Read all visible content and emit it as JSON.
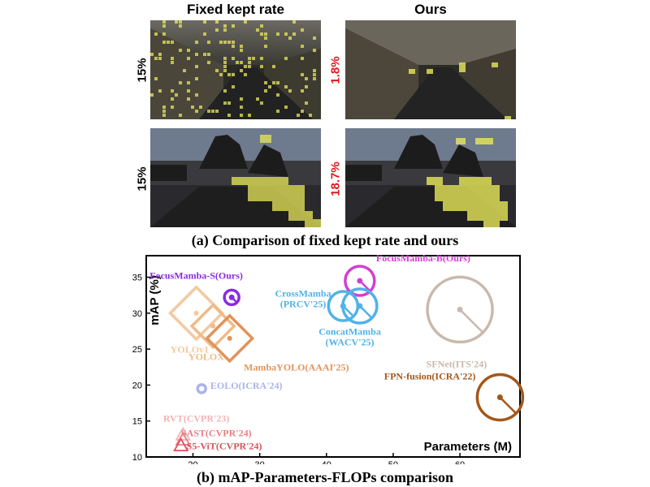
{
  "figure_a": {
    "headers": {
      "left": "Fixed kept rate",
      "right": "Ours"
    },
    "rows": [
      {
        "left_rate": "15%",
        "right_rate": "1.8%"
      },
      {
        "left_rate": "15%",
        "right_rate": "18.7%"
      }
    ],
    "caption": "(a) Comparison of fixed kept rate and ours",
    "colors": {
      "patch": "#e8e85a",
      "rate_ours": "#e0161b",
      "rate_fixed": "#000000"
    }
  },
  "figure_b": {
    "caption": "(b) mAP-Parameters-FLOPs comparison"
  },
  "chart_data": {
    "type": "scatter",
    "xlabel": "Parameters (M)",
    "ylabel": "mAP (%)",
    "xlim": [
      13,
      69
    ],
    "ylim": [
      10,
      38
    ],
    "xticks": [
      20,
      30,
      40,
      50,
      60
    ],
    "yticks": [
      10,
      15,
      20,
      25,
      30,
      35
    ],
    "grid": false,
    "points": [
      {
        "name": "FocusMamba-S(Ours)",
        "x": 25.8,
        "y": 32.2,
        "size": 9,
        "shape": "circle",
        "color": "#8a2be2",
        "label_x": 20.5,
        "label_y": 34.8
      },
      {
        "name": "FocusMamba-B(Ours)",
        "x": 45.0,
        "y": 34.5,
        "size": 18,
        "shape": "circle",
        "color": "#d23fd2",
        "label_x": 54.5,
        "label_y": 37.2
      },
      {
        "name": "CrossMamba",
        "sub": "(PRCV'25)",
        "x": 42.5,
        "y": 31.0,
        "size": 18,
        "shape": "circle",
        "color": "#4fb3e8",
        "label_x": 36.5,
        "label_y": 32.3
      },
      {
        "name": "ConcatMamba",
        "sub": "(WACV'25)",
        "x": 45.0,
        "y": 31.0,
        "size": 21,
        "shape": "circle",
        "color": "#4fb3e8",
        "label_x": 43.5,
        "label_y": 27.0
      },
      {
        "name": "SFNet(ITS'24)",
        "x": 60.0,
        "y": 30.5,
        "size": 40,
        "shape": "circle",
        "color": "#c9b9ac",
        "label_x": 59.5,
        "label_y": 22.5
      },
      {
        "name": "FPN-fusion(ICRA'22)",
        "x": 66.0,
        "y": 18.3,
        "size": 28,
        "shape": "circle",
        "color": "#a3571a",
        "label_x": 55.5,
        "label_y": 20.8
      },
      {
        "name": "YOLOv1",
        "x": 20.5,
        "y": 30.0,
        "size": 32,
        "shape": "diamond",
        "color": "#f3c9a0",
        "label_x": 19.5,
        "label_y": 24.5
      },
      {
        "name": "YOLOX",
        "x": 23.0,
        "y": 28.2,
        "size": 26,
        "shape": "diamond",
        "color": "#f0ba85",
        "label_x": 22.0,
        "label_y": 23.5
      },
      {
        "name": "MambaYOLO(AAAI'25)",
        "x": 25.5,
        "y": 26.5,
        "size": 28,
        "shape": "diamond",
        "color": "#e0945a",
        "label_x": 35.5,
        "label_y": 22.0
      },
      {
        "name": "EOLO(ICRA'24)",
        "x": 21.3,
        "y": 19.5,
        "size": 5,
        "shape": "circle",
        "color": "#a9b3ea",
        "label_x": 28.0,
        "label_y": 19.5
      },
      {
        "name": "RVT(CVPR'23)",
        "x": 18.5,
        "y": 13.0,
        "size": 9,
        "shape": "triangle",
        "color": "#f2b3b6",
        "label_x": 20.5,
        "label_y": 14.9
      },
      {
        "name": "SAST(CVPR'24)",
        "x": 18.5,
        "y": 12.3,
        "size": 9,
        "shape": "triangle",
        "color": "#e87f86",
        "label_x": 23.5,
        "label_y": 12.9
      },
      {
        "name": "S5-ViT(CVPR'24)",
        "x": 18.2,
        "y": 11.5,
        "size": 9,
        "shape": "triangle",
        "color": "#e0505a",
        "label_x": 24.7,
        "label_y": 11.1
      }
    ]
  }
}
